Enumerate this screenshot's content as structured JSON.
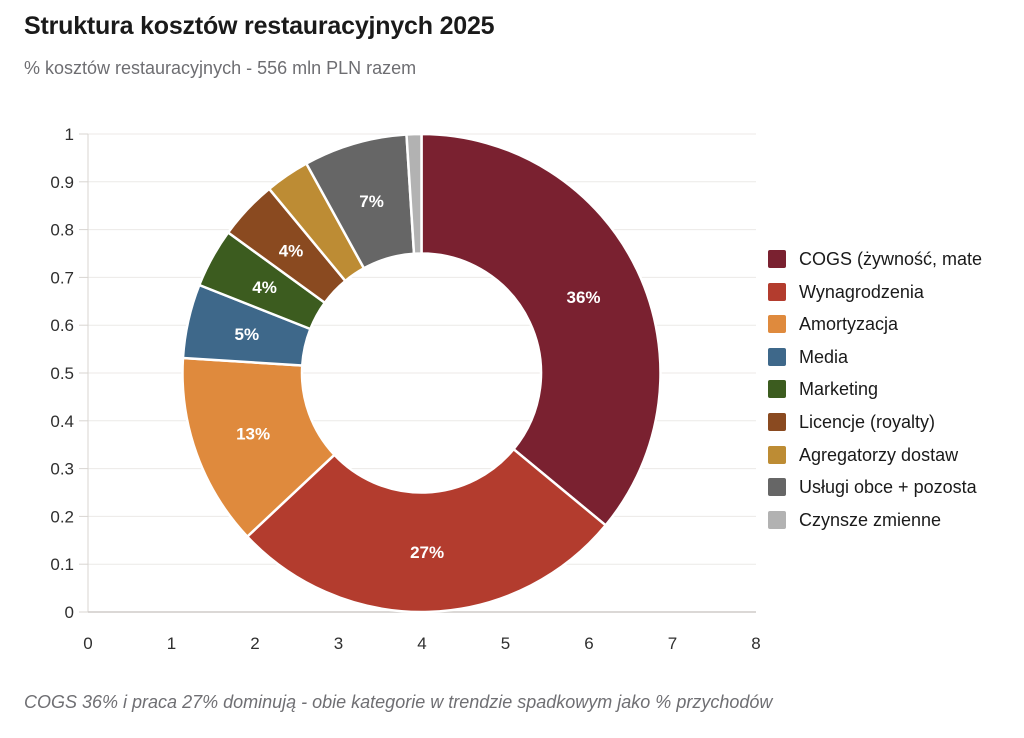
{
  "header": {
    "title": "Struktura kosztów restauracyjnych 2025",
    "subtitle": "% kosztów restauracyjnych - 556 mln PLN razem"
  },
  "footnote": {
    "text": "COGS 36% i praca 27% dominują - obie kategorie w trendzie spadkowym jako % przychodów"
  },
  "chart_data": {
    "type": "pie",
    "donut": true,
    "title": "Struktura kosztów restauracyjnych 2025",
    "subtitle": "% kosztów restauracyjnych - 556 mln PLN razem",
    "total_text": "556 mln PLN razem",
    "categories": [
      "COGS (żywność, mate",
      "Wynagrodzenia",
      "Amortyzacja",
      "Media",
      "Marketing",
      "Licencje (royalty)",
      "Agregatorzy dostaw",
      "Usługi obce + pozosta",
      "Czynsze zmienne"
    ],
    "values": [
      36,
      27,
      13,
      5,
      4,
      4,
      3,
      7,
      1
    ],
    "colors": [
      "#7a2130",
      "#b33c2e",
      "#df8a3d",
      "#3e688a",
      "#3c5c1f",
      "#8a4a20",
      "#bd8c34",
      "#666666",
      "#b2b2b2"
    ],
    "slice_labels": [
      "36%",
      "27%",
      "13%",
      "5%",
      "4%",
      "4%",
      "",
      "7%",
      ""
    ],
    "slice_label_color": "#ffffff",
    "start_at": "top",
    "direction": "clockwise",
    "inner_radius_ratio": 0.5,
    "legend_position": "right",
    "grid": "horizontal",
    "xlim": [
      0,
      8
    ],
    "ylim": [
      0,
      1
    ],
    "x_tick_labels": [
      "0",
      "1",
      "2",
      "3",
      "4",
      "5",
      "6",
      "7",
      "8"
    ],
    "y_tick_labels": [
      "0",
      "0.1",
      "0.2",
      "0.3",
      "0.4",
      "0.5",
      "0.6",
      "0.7",
      "0.8",
      "0.9",
      "1"
    ]
  },
  "style_colors": {
    "gridline": "#eceae7",
    "spine": "#d8d5d1",
    "bottom_axis": "#cfccc8",
    "tick_label": "#2f2f2f",
    "slice_border": "#ffffff"
  }
}
